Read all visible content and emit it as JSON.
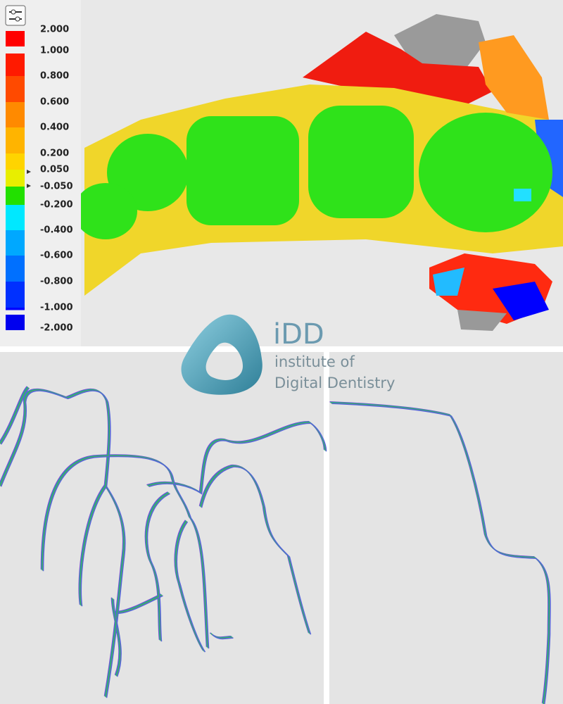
{
  "legend": {
    "items": [
      {
        "label": "2.000",
        "color": "#ff0000"
      },
      {
        "label": "1.000",
        "color": "#ff1a00"
      },
      {
        "label": "0.800",
        "color": "#ff4a00"
      },
      {
        "label": "0.600",
        "color": "#ff8a00"
      },
      {
        "label": "0.400",
        "color": "#ffb400"
      },
      {
        "label": "0.200",
        "color": "#ffd400"
      },
      {
        "label": "0.050",
        "color": "#e8ee00"
      },
      {
        "label": "-0.050",
        "color": "#22e000"
      },
      {
        "label": "-0.200",
        "color": "#00e8ff"
      },
      {
        "label": "-0.400",
        "color": "#00a8ff"
      },
      {
        "label": "-0.600",
        "color": "#0070ff"
      },
      {
        "label": "-0.800",
        "color": "#0030ff"
      },
      {
        "label": "-1.000",
        "color": "#0000ff"
      },
      {
        "label": "-2.000",
        "color": "#0000ee"
      }
    ]
  },
  "logo": {
    "abbr": "iDD",
    "line1": "institute of",
    "line2": "Digital Dentistry"
  }
}
